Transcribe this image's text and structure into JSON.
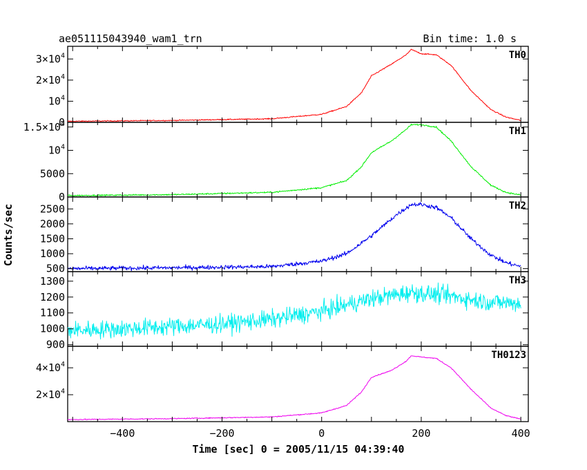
{
  "header": {
    "title": "ae051115043940_wam1_trn",
    "bin_time": "Bin time: 1.0 s"
  },
  "chart_data": {
    "type": "line",
    "xlabel": "Time [sec] 0 = 2005/11/15 04:39:40",
    "ylabel": "Counts/sec",
    "xlim": [
      -510,
      415
    ],
    "x_ticks": [
      {
        "value": -400,
        "label": "−400"
      },
      {
        "value": -200,
        "label": "−200"
      },
      {
        "value": 0,
        "label": "0"
      },
      {
        "value": 200,
        "label": "200"
      },
      {
        "value": 400,
        "label": "400"
      }
    ],
    "grid": false,
    "panels": [
      {
        "label": "TH0",
        "color": "#ff0000",
        "ylim": [
          0,
          36000
        ],
        "y_ticks": [
          {
            "value": 0,
            "base": "0",
            "exp": ""
          },
          {
            "value": 10000,
            "base": "10",
            "exp": "4"
          },
          {
            "value": 20000,
            "base": "2×10",
            "exp": "4"
          },
          {
            "value": 30000,
            "base": "3×10",
            "exp": "4"
          }
        ],
        "noise": 250,
        "profile": [
          [
            -510,
            500
          ],
          [
            -300,
            900
          ],
          [
            -100,
            1700
          ],
          [
            0,
            3800
          ],
          [
            50,
            7500
          ],
          [
            80,
            14000
          ],
          [
            100,
            22000
          ],
          [
            140,
            27500
          ],
          [
            170,
            32000
          ],
          [
            180,
            34500
          ],
          [
            200,
            32500
          ],
          [
            230,
            32000
          ],
          [
            260,
            27000
          ],
          [
            300,
            15000
          ],
          [
            340,
            6000
          ],
          [
            370,
            2500
          ],
          [
            400,
            900
          ]
        ]
      },
      {
        "label": "TH1",
        "color": "#00ee00",
        "ylim": [
          0,
          16000
        ],
        "y_ticks": [
          {
            "value": 0,
            "base": "0",
            "exp": ""
          },
          {
            "value": 5000,
            "base": "5000",
            "exp": ""
          },
          {
            "value": 10000,
            "base": "10",
            "exp": "4"
          },
          {
            "value": 15000,
            "base": "1.5×10",
            "exp": "4"
          }
        ],
        "noise": 150,
        "profile": [
          [
            -510,
            300
          ],
          [
            -300,
            500
          ],
          [
            -100,
            1000
          ],
          [
            0,
            2000
          ],
          [
            50,
            3500
          ],
          [
            80,
            6500
          ],
          [
            100,
            9500
          ],
          [
            140,
            12000
          ],
          [
            170,
            14500
          ],
          [
            180,
            15500
          ],
          [
            200,
            15500
          ],
          [
            230,
            15000
          ],
          [
            260,
            12000
          ],
          [
            300,
            6500
          ],
          [
            340,
            2500
          ],
          [
            370,
            1000
          ],
          [
            400,
            400
          ]
        ]
      },
      {
        "label": "TH2",
        "color": "#0000ee",
        "ylim": [
          400,
          2900
        ],
        "y_ticks": [
          {
            "value": 500,
            "base": "500",
            "exp": ""
          },
          {
            "value": 1000,
            "base": "1000",
            "exp": ""
          },
          {
            "value": 1500,
            "base": "1500",
            "exp": ""
          },
          {
            "value": 2000,
            "base": "2000",
            "exp": ""
          },
          {
            "value": 2500,
            "base": "2500",
            "exp": ""
          }
        ],
        "noise": 70,
        "profile": [
          [
            -510,
            500
          ],
          [
            -300,
            530
          ],
          [
            -100,
            570
          ],
          [
            0,
            750
          ],
          [
            50,
            1000
          ],
          [
            100,
            1600
          ],
          [
            150,
            2300
          ],
          [
            180,
            2650
          ],
          [
            200,
            2650
          ],
          [
            230,
            2550
          ],
          [
            260,
            2200
          ],
          [
            300,
            1500
          ],
          [
            340,
            950
          ],
          [
            370,
            700
          ],
          [
            400,
            570
          ]
        ]
      },
      {
        "label": "TH3",
        "color": "#00eeee",
        "ylim": [
          890,
          1360
        ],
        "y_ticks": [
          {
            "value": 900,
            "base": "900",
            "exp": ""
          },
          {
            "value": 1000,
            "base": "1000",
            "exp": ""
          },
          {
            "value": 1100,
            "base": "1100",
            "exp": ""
          },
          {
            "value": 1200,
            "base": "1200",
            "exp": ""
          },
          {
            "value": 1300,
            "base": "1300",
            "exp": ""
          }
        ],
        "noise": 55,
        "profile": [
          [
            -510,
            990
          ],
          [
            -400,
            1000
          ],
          [
            -200,
            1030
          ],
          [
            -100,
            1060
          ],
          [
            0,
            1110
          ],
          [
            100,
            1190
          ],
          [
            180,
            1230
          ],
          [
            250,
            1210
          ],
          [
            330,
            1170
          ],
          [
            400,
            1160
          ]
        ]
      },
      {
        "label": "TH0123",
        "color": "#ee00ee",
        "ylim": [
          0,
          56000
        ],
        "y_ticks": [
          {
            "value": 20000,
            "base": "2×10",
            "exp": "4"
          },
          {
            "value": 40000,
            "base": "4×10",
            "exp": "4"
          }
        ],
        "noise": 350,
        "profile": [
          [
            -510,
            1500
          ],
          [
            -300,
            2200
          ],
          [
            -100,
            3500
          ],
          [
            0,
            6500
          ],
          [
            50,
            12000
          ],
          [
            80,
            22000
          ],
          [
            100,
            33000
          ],
          [
            140,
            38000
          ],
          [
            170,
            45000
          ],
          [
            180,
            49000
          ],
          [
            200,
            48000
          ],
          [
            230,
            47000
          ],
          [
            260,
            40000
          ],
          [
            300,
            24000
          ],
          [
            340,
            10000
          ],
          [
            370,
            4500
          ],
          [
            400,
            1800
          ]
        ]
      }
    ]
  }
}
